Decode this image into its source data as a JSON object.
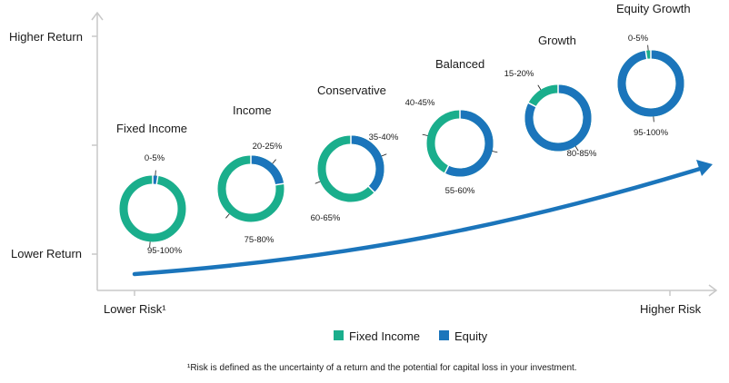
{
  "chart_data": {
    "type": "donut-scatter",
    "y_axis": {
      "top_label": "Higher Return",
      "bottom_label": "Lower Return"
    },
    "x_axis": {
      "left_label": "Lower Risk¹",
      "right_label": "Higher Risk"
    },
    "profiles": [
      {
        "name": "Fixed Income",
        "fixed_income_pct": 97.5,
        "equity_pct": 2.5,
        "fixed_income_label": "95-100%",
        "equity_label": "0-5%"
      },
      {
        "name": "Income",
        "fixed_income_pct": 77.5,
        "equity_pct": 22.5,
        "fixed_income_label": "75-80%",
        "equity_label": "20-25%"
      },
      {
        "name": "Conservative",
        "fixed_income_pct": 62.5,
        "equity_pct": 37.5,
        "fixed_income_label": "60-65%",
        "equity_label": "35-40%"
      },
      {
        "name": "Balanced",
        "fixed_income_pct": 42.5,
        "equity_pct": 57.5,
        "fixed_income_label": "40-45%",
        "equity_label": "55-60%"
      },
      {
        "name": "Growth",
        "fixed_income_pct": 17.5,
        "equity_pct": 82.5,
        "fixed_income_label": "15-20%",
        "equity_label": "80-85%"
      },
      {
        "name": "Equity Growth",
        "fixed_income_pct": 2.5,
        "equity_pct": 97.5,
        "fixed_income_label": "0-5%",
        "equity_label": "95-100%"
      }
    ],
    "legend": [
      {
        "name": "Fixed Income",
        "color": "#1aae8c"
      },
      {
        "name": "Equity",
        "color": "#1b75bb"
      }
    ],
    "footnote": "¹Risk is defined as the uncertainty of a return and the potential for capital loss in your investment."
  },
  "colors": {
    "fixed_income": "#1aae8c",
    "equity": "#1b75bb",
    "axis": "#c8c8c8",
    "arrow": "#1b75bb"
  }
}
